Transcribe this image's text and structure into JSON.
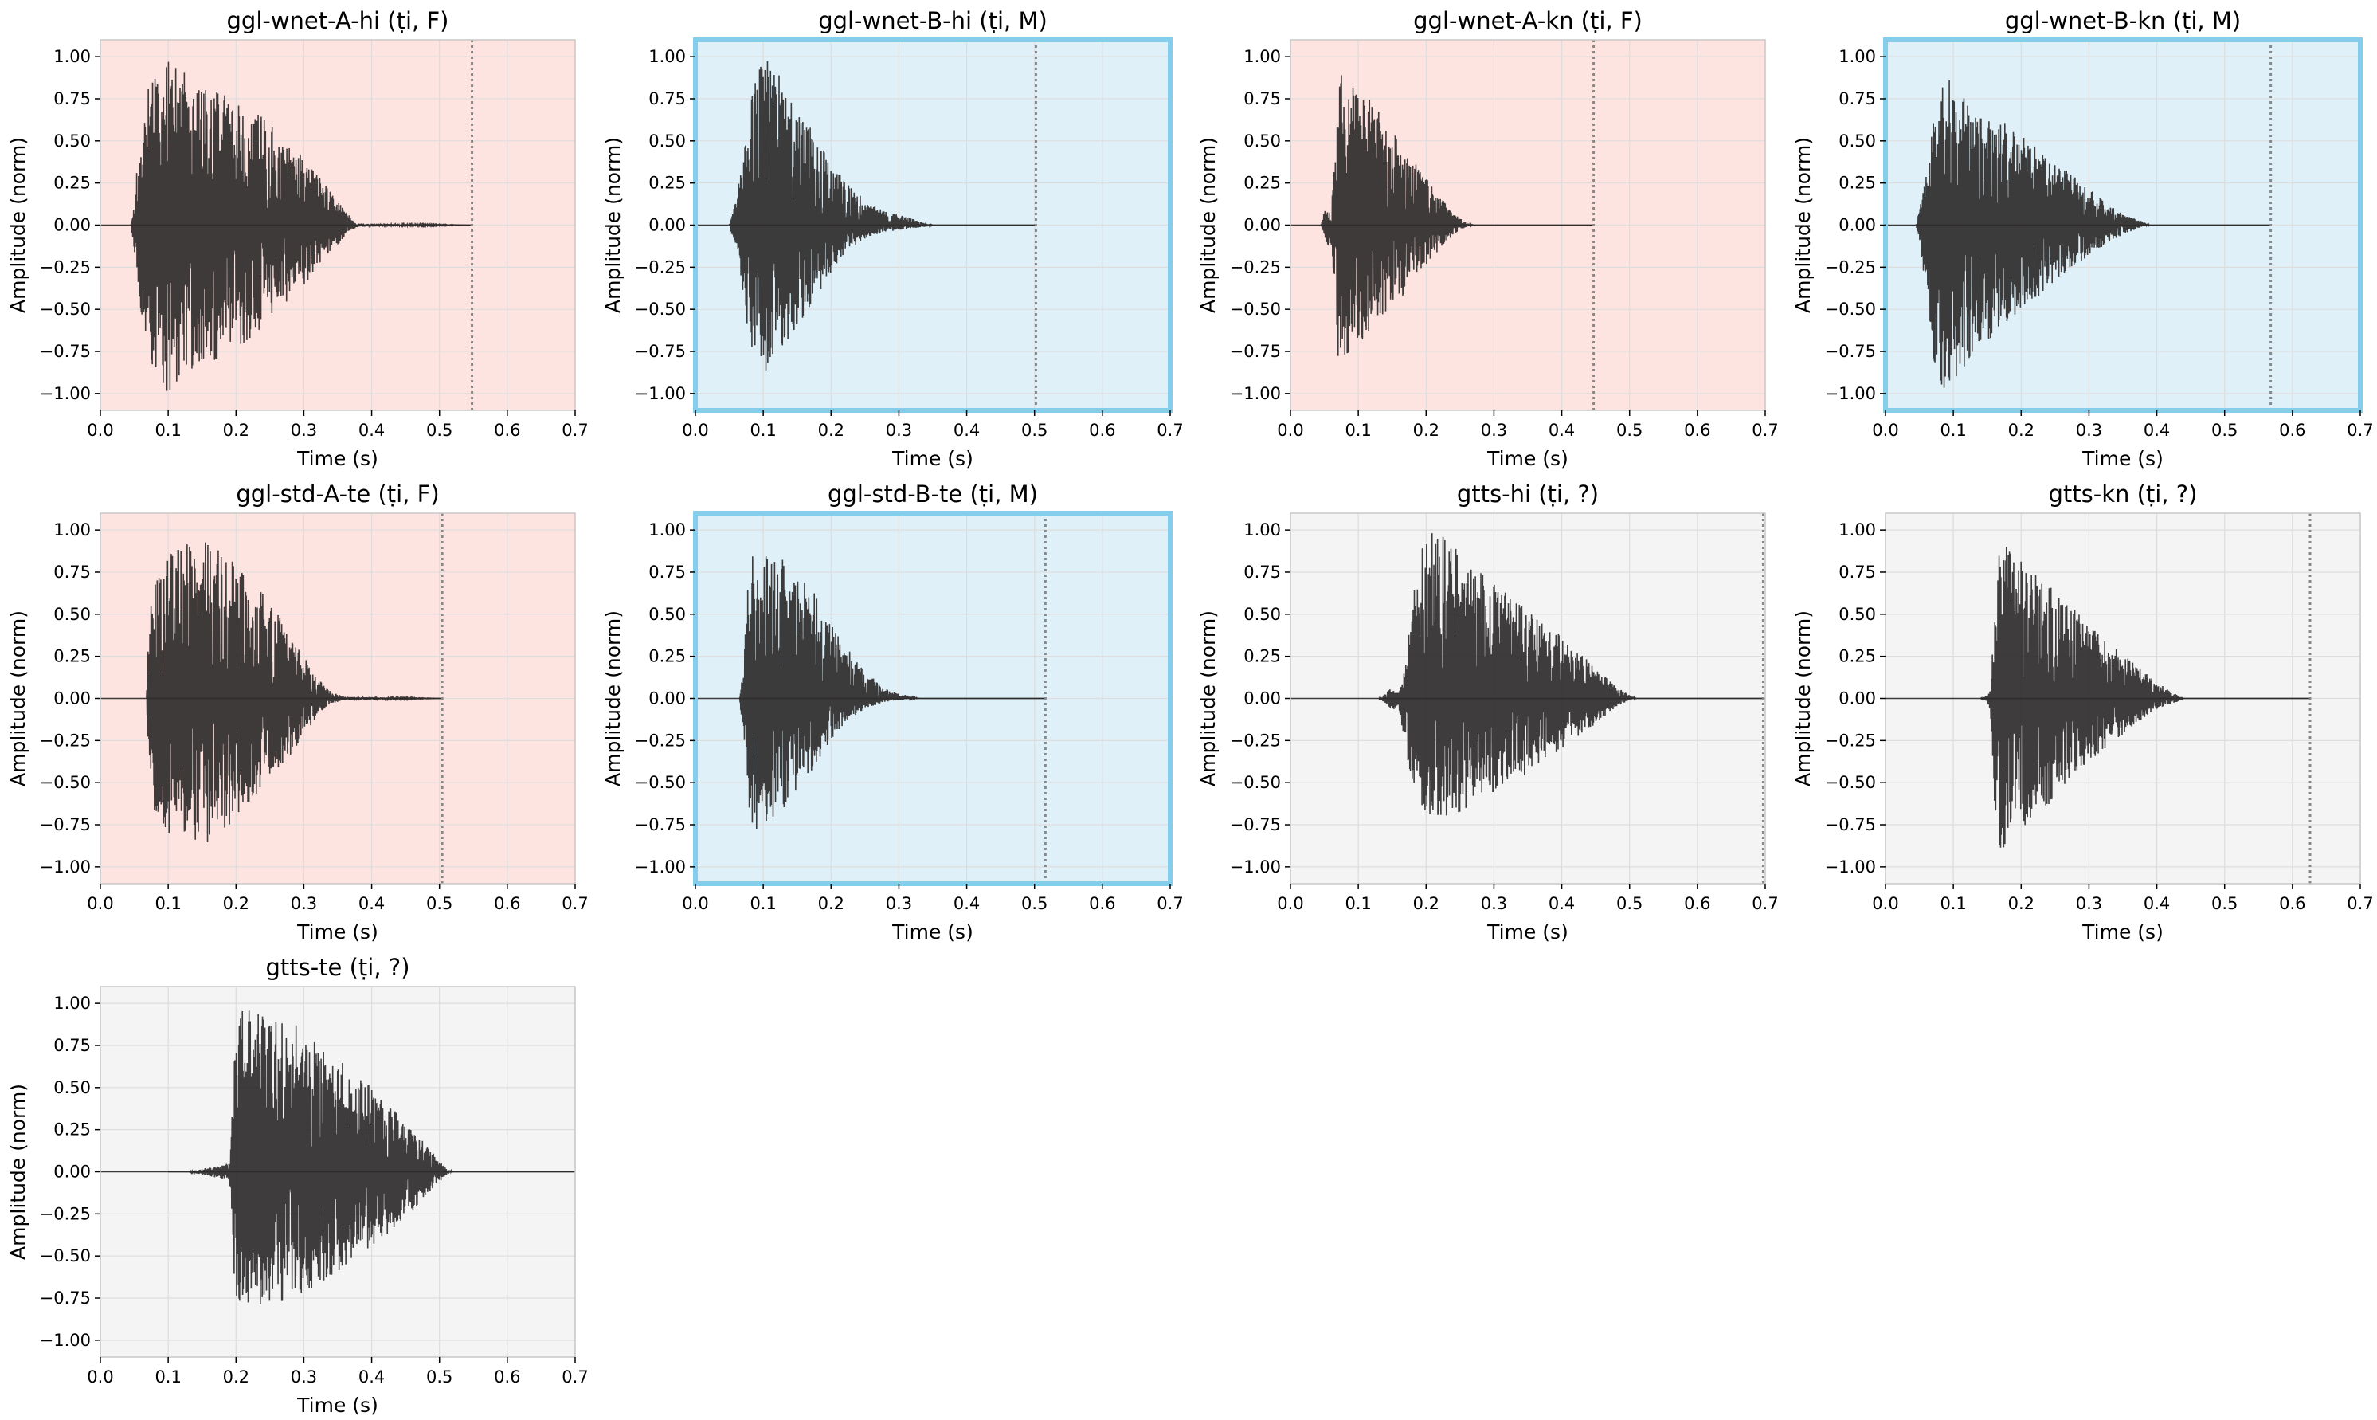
{
  "figure": {
    "background": "#ffffff",
    "styles": {
      "F": {
        "bg": "#fee4e1",
        "frame": "#c8c8c8"
      },
      "M": {
        "bg": "#dff0f8",
        "frame": "#84ceeb"
      },
      "?": {
        "bg": "#f4f4f4",
        "frame": "#c8c8c8"
      }
    },
    "wave_color": "#2e2b2b",
    "marker_color": "#888888",
    "grid_color": "#dddddd"
  },
  "chart_data": [
    {
      "type": "line",
      "title": "ggl-wnet-A-hi (ṭi, F)",
      "gender": "F",
      "xlabel": "Time (s)",
      "ylabel": "Amplitude (norm)",
      "xlim": [
        0,
        0.7
      ],
      "ylim": [
        -1.1,
        1.1
      ],
      "xticks": [
        "0.0",
        "0.1",
        "0.2",
        "0.3",
        "0.4",
        "0.5",
        "0.6",
        "0.7"
      ],
      "yticks": [
        "1.00",
        "0.75",
        "0.50",
        "0.25",
        "0.00",
        "−0.25",
        "−0.50",
        "−0.75",
        "−1.00"
      ],
      "grid": true,
      "end_marker": 0.548,
      "envelope": {
        "x": [
          0.045,
          0.05,
          0.06,
          0.07,
          0.08,
          0.1,
          0.12,
          0.14,
          0.18,
          0.22,
          0.26,
          0.3,
          0.33,
          0.36,
          0.37,
          0.38,
          0.548
        ],
        "upper": [
          0.0,
          0.15,
          0.6,
          0.8,
          0.9,
          1.0,
          0.92,
          0.86,
          0.78,
          0.7,
          0.57,
          0.42,
          0.25,
          0.1,
          0.04,
          0.01,
          0.0
        ],
        "lower": [
          0.0,
          -0.15,
          -0.6,
          -0.85,
          -0.92,
          -1.0,
          -0.9,
          -0.85,
          -0.78,
          -0.68,
          -0.52,
          -0.36,
          -0.2,
          -0.08,
          -0.03,
          -0.01,
          0.0
        ]
      }
    },
    {
      "type": "line",
      "title": "ggl-wnet-B-hi (ṭi, M)",
      "gender": "M",
      "xlabel": "Time (s)",
      "ylabel": "Amplitude (norm)",
      "xlim": [
        0,
        0.7
      ],
      "ylim": [
        -1.1,
        1.1
      ],
      "xticks": [
        "0.0",
        "0.1",
        "0.2",
        "0.3",
        "0.4",
        "0.5",
        "0.6",
        "0.7"
      ],
      "yticks": [
        "1.00",
        "0.75",
        "0.50",
        "0.25",
        "0.00",
        "−0.25",
        "−0.50",
        "−0.75",
        "−1.00"
      ],
      "grid": true,
      "end_marker": 0.502,
      "envelope": {
        "x": [
          0.05,
          0.06,
          0.07,
          0.08,
          0.09,
          0.1,
          0.11,
          0.13,
          0.15,
          0.18,
          0.2,
          0.22,
          0.25,
          0.28,
          0.32,
          0.34,
          0.35,
          0.502
        ],
        "upper": [
          0.0,
          0.15,
          0.4,
          0.7,
          0.9,
          0.97,
          1.0,
          0.85,
          0.7,
          0.52,
          0.38,
          0.26,
          0.15,
          0.08,
          0.04,
          0.01,
          0.0,
          0.0
        ],
        "lower": [
          0.0,
          -0.15,
          -0.4,
          -0.7,
          -0.85,
          -0.88,
          -0.86,
          -0.72,
          -0.6,
          -0.42,
          -0.28,
          -0.17,
          -0.08,
          -0.04,
          -0.02,
          -0.01,
          0.0,
          0.0
        ]
      }
    },
    {
      "type": "line",
      "title": "ggl-wnet-A-kn (ṭi, F)",
      "gender": "F",
      "xlabel": "Time (s)",
      "ylabel": "Amplitude (norm)",
      "xlim": [
        0,
        0.7
      ],
      "ylim": [
        -1.1,
        1.1
      ],
      "xticks": [
        "0.0",
        "0.1",
        "0.2",
        "0.3",
        "0.4",
        "0.5",
        "0.6",
        "0.7"
      ],
      "yticks": [
        "1.00",
        "0.75",
        "0.50",
        "0.25",
        "0.00",
        "−0.25",
        "−0.50",
        "−0.75",
        "−1.00"
      ],
      "grid": true,
      "end_marker": 0.447,
      "envelope": {
        "x": [
          0.045,
          0.05,
          0.06,
          0.065,
          0.07,
          0.075,
          0.09,
          0.11,
          0.14,
          0.17,
          0.2,
          0.23,
          0.25,
          0.26,
          0.27,
          0.447
        ],
        "upper": [
          0.0,
          0.08,
          0.12,
          0.4,
          0.9,
          1.0,
          0.92,
          0.8,
          0.62,
          0.45,
          0.28,
          0.12,
          0.04,
          0.01,
          0.0,
          0.0
        ],
        "lower": [
          0.0,
          -0.08,
          -0.15,
          -0.5,
          -0.8,
          -0.84,
          -0.78,
          -0.68,
          -0.55,
          -0.4,
          -0.25,
          -0.1,
          -0.03,
          -0.01,
          0.0,
          0.0
        ]
      }
    },
    {
      "type": "line",
      "title": "ggl-wnet-B-kn (ṭi, M)",
      "gender": "M",
      "xlabel": "Time (s)",
      "ylabel": "Amplitude (norm)",
      "xlim": [
        0,
        0.7
      ],
      "ylim": [
        -1.1,
        1.1
      ],
      "xticks": [
        "0.0",
        "0.1",
        "0.2",
        "0.3",
        "0.4",
        "0.5",
        "0.6",
        "0.7"
      ],
      "yticks": [
        "1.00",
        "0.75",
        "0.50",
        "0.25",
        "0.00",
        "−0.25",
        "−0.50",
        "−0.75",
        "−1.00"
      ],
      "grid": true,
      "end_marker": 0.568,
      "envelope": {
        "x": [
          0.045,
          0.05,
          0.06,
          0.07,
          0.08,
          0.09,
          0.1,
          0.12,
          0.15,
          0.18,
          0.22,
          0.26,
          0.3,
          0.33,
          0.36,
          0.38,
          0.39,
          0.568
        ],
        "upper": [
          0.0,
          0.1,
          0.3,
          0.6,
          0.8,
          0.88,
          0.86,
          0.8,
          0.7,
          0.6,
          0.48,
          0.35,
          0.22,
          0.12,
          0.05,
          0.02,
          0.0,
          0.0
        ],
        "lower": [
          0.0,
          -0.1,
          -0.4,
          -0.8,
          -0.95,
          -1.0,
          -0.92,
          -0.82,
          -0.7,
          -0.57,
          -0.45,
          -0.3,
          -0.18,
          -0.1,
          -0.04,
          -0.01,
          0.0,
          0.0
        ]
      }
    },
    {
      "type": "line",
      "title": "ggl-std-A-te (ṭi, F)",
      "gender": "F",
      "xlabel": "Time (s)",
      "ylabel": "Amplitude (norm)",
      "xlim": [
        0,
        0.7
      ],
      "ylim": [
        -1.1,
        1.1
      ],
      "xticks": [
        "0.0",
        "0.1",
        "0.2",
        "0.3",
        "0.4",
        "0.5",
        "0.6",
        "0.7"
      ],
      "yticks": [
        "1.00",
        "0.75",
        "0.50",
        "0.25",
        "0.00",
        "−0.25",
        "−0.50",
        "−0.75",
        "−1.00"
      ],
      "grid": true,
      "end_marker": 0.504,
      "envelope": {
        "x": [
          0.068,
          0.07,
          0.075,
          0.085,
          0.1,
          0.12,
          0.14,
          0.16,
          0.2,
          0.24,
          0.27,
          0.3,
          0.32,
          0.34,
          0.36,
          0.504
        ],
        "upper": [
          0.0,
          0.3,
          0.6,
          0.75,
          0.85,
          0.93,
          0.96,
          0.92,
          0.8,
          0.62,
          0.45,
          0.25,
          0.12,
          0.04,
          0.01,
          0.0
        ],
        "lower": [
          0.0,
          -0.3,
          -0.6,
          -0.78,
          -0.85,
          -0.88,
          -0.9,
          -0.86,
          -0.72,
          -0.55,
          -0.4,
          -0.22,
          -0.1,
          -0.03,
          -0.01,
          0.0
        ]
      }
    },
    {
      "type": "line",
      "title": "ggl-std-B-te (ṭi, M)",
      "gender": "M",
      "xlabel": "Time (s)",
      "ylabel": "Amplitude (norm)",
      "xlim": [
        0,
        0.7
      ],
      "ylim": [
        -1.1,
        1.1
      ],
      "xticks": [
        "0.0",
        "0.1",
        "0.2",
        "0.3",
        "0.4",
        "0.5",
        "0.6",
        "0.7"
      ],
      "yticks": [
        "1.00",
        "0.75",
        "0.50",
        "0.25",
        "0.00",
        "−0.25",
        "−0.50",
        "−0.75",
        "−1.00"
      ],
      "grid": true,
      "end_marker": 0.516,
      "envelope": {
        "x": [
          0.065,
          0.07,
          0.075,
          0.08,
          0.09,
          0.1,
          0.12,
          0.15,
          0.18,
          0.2,
          0.22,
          0.25,
          0.28,
          0.3,
          0.32,
          0.33,
          0.516
        ],
        "upper": [
          0.0,
          0.2,
          0.6,
          0.85,
          0.9,
          0.88,
          0.86,
          0.75,
          0.6,
          0.45,
          0.32,
          0.16,
          0.06,
          0.03,
          0.01,
          0.0,
          0.0
        ],
        "lower": [
          0.0,
          -0.2,
          -0.5,
          -0.78,
          -0.8,
          -0.78,
          -0.7,
          -0.55,
          -0.38,
          -0.25,
          -0.15,
          -0.06,
          -0.02,
          -0.01,
          0.0,
          0.0,
          0.0
        ]
      }
    },
    {
      "type": "line",
      "title": "gtts-hi (ṭi, ?)",
      "gender": "?",
      "xlabel": "Time (s)",
      "ylabel": "Amplitude (norm)",
      "xlim": [
        0,
        0.7
      ],
      "ylim": [
        -1.1,
        1.1
      ],
      "xticks": [
        "0.0",
        "0.1",
        "0.2",
        "0.3",
        "0.4",
        "0.5",
        "0.6",
        "0.7"
      ],
      "yticks": [
        "1.00",
        "0.75",
        "0.50",
        "0.25",
        "0.00",
        "−0.25",
        "−0.50",
        "−0.75",
        "−1.00"
      ],
      "grid": true,
      "end_marker": 0.697,
      "envelope": {
        "x": [
          0.13,
          0.14,
          0.15,
          0.16,
          0.17,
          0.18,
          0.19,
          0.2,
          0.21,
          0.23,
          0.26,
          0.3,
          0.34,
          0.38,
          0.42,
          0.46,
          0.48,
          0.5,
          0.51,
          0.7
        ],
        "upper": [
          0.0,
          0.03,
          0.07,
          0.03,
          0.25,
          0.6,
          0.85,
          0.95,
          1.0,
          0.95,
          0.82,
          0.68,
          0.56,
          0.44,
          0.3,
          0.15,
          0.07,
          0.02,
          0.0,
          0.0
        ],
        "lower": [
          0.0,
          -0.03,
          -0.07,
          -0.06,
          -0.3,
          -0.55,
          -0.65,
          -0.7,
          -0.72,
          -0.7,
          -0.66,
          -0.58,
          -0.48,
          -0.36,
          -0.24,
          -0.12,
          -0.05,
          -0.01,
          0.0,
          0.0
        ]
      }
    },
    {
      "type": "line",
      "title": "gtts-kn (ṭi, ?)",
      "gender": "?",
      "xlabel": "Time (s)",
      "ylabel": "Amplitude (norm)",
      "xlim": [
        0,
        0.7
      ],
      "ylim": [
        -1.1,
        1.1
      ],
      "xticks": [
        "0.0",
        "0.1",
        "0.2",
        "0.3",
        "0.4",
        "0.5",
        "0.6",
        "0.7"
      ],
      "yticks": [
        "1.00",
        "0.75",
        "0.50",
        "0.25",
        "0.00",
        "−0.25",
        "−0.50",
        "−0.75",
        "−1.00"
      ],
      "grid": true,
      "end_marker": 0.626,
      "envelope": {
        "x": [
          0.14,
          0.15,
          0.155,
          0.16,
          0.165,
          0.17,
          0.18,
          0.2,
          0.23,
          0.26,
          0.3,
          0.34,
          0.38,
          0.41,
          0.43,
          0.44,
          0.45,
          0.626
        ],
        "upper": [
          0.0,
          0.02,
          0.05,
          0.5,
          0.85,
          0.93,
          0.9,
          0.82,
          0.72,
          0.6,
          0.45,
          0.3,
          0.16,
          0.07,
          0.02,
          0.0,
          0.0,
          0.0
        ],
        "lower": [
          0.0,
          -0.02,
          -0.1,
          -0.6,
          -0.9,
          -1.0,
          -0.85,
          -0.78,
          -0.68,
          -0.55,
          -0.4,
          -0.25,
          -0.12,
          -0.05,
          -0.02,
          0.0,
          0.0,
          0.0
        ]
      }
    },
    {
      "type": "line",
      "title": "gtts-te (ṭi, ?)",
      "gender": "?",
      "xlabel": "Time (s)",
      "ylabel": "Amplitude (norm)",
      "xlim": [
        0,
        0.7
      ],
      "ylim": [
        -1.1,
        1.1
      ],
      "xticks": [
        "0.0",
        "0.1",
        "0.2",
        "0.3",
        "0.4",
        "0.5",
        "0.6",
        "0.7"
      ],
      "yticks": [
        "1.00",
        "0.75",
        "0.50",
        "0.25",
        "0.00",
        "−0.25",
        "−0.50",
        "−0.75",
        "−1.00"
      ],
      "grid": true,
      "end_marker": null,
      "envelope": {
        "x": [
          0.1,
          0.13,
          0.14,
          0.19,
          0.195,
          0.2,
          0.21,
          0.23,
          0.26,
          0.3,
          0.34,
          0.38,
          0.42,
          0.46,
          0.48,
          0.5,
          0.51,
          0.52,
          0.7
        ],
        "upper": [
          0.0,
          0.0,
          0.01,
          0.05,
          0.4,
          0.9,
          1.0,
          0.95,
          0.92,
          0.85,
          0.72,
          0.58,
          0.42,
          0.26,
          0.16,
          0.07,
          0.02,
          0.0,
          0.0
        ],
        "lower": [
          0.0,
          0.0,
          -0.01,
          -0.05,
          -0.5,
          -0.8,
          -0.82,
          -0.8,
          -0.78,
          -0.72,
          -0.62,
          -0.5,
          -0.38,
          -0.24,
          -0.14,
          -0.06,
          -0.02,
          0.0,
          0.0
        ]
      }
    }
  ]
}
